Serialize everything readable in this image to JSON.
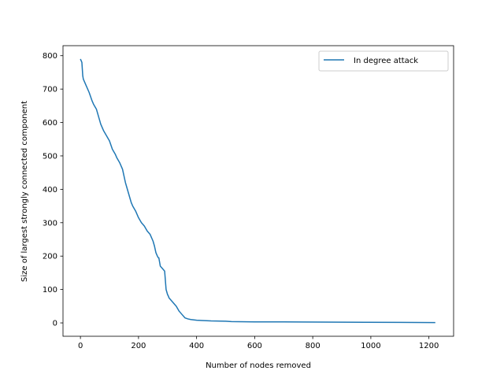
{
  "chart_data": {
    "type": "line",
    "title": "",
    "xlabel": "Number of nodes removed",
    "ylabel": "Size of largest strongly connected component",
    "xlim": [
      -60,
      1285
    ],
    "ylim": [
      -40,
      830
    ],
    "xticks": [
      0,
      200,
      400,
      600,
      800,
      1000,
      1200
    ],
    "yticks": [
      0,
      100,
      200,
      300,
      400,
      500,
      600,
      700,
      800
    ],
    "grid": false,
    "legend_position": "top-right",
    "series": [
      {
        "name": "In degree attack",
        "color": "#1f77b4",
        "x": [
          0,
          5,
          8,
          10,
          20,
          30,
          40,
          45,
          55,
          65,
          70,
          80,
          90,
          100,
          110,
          120,
          125,
          135,
          145,
          150,
          155,
          160,
          165,
          170,
          175,
          180,
          190,
          200,
          210,
          220,
          230,
          240,
          250,
          255,
          260,
          265,
          268,
          270,
          275,
          280,
          285,
          290,
          295,
          300,
          303,
          305,
          310,
          320,
          330,
          340,
          350,
          360,
          370,
          380,
          400,
          450,
          500,
          520,
          600,
          700,
          980,
          1222
        ],
        "y": [
          790,
          780,
          740,
          730,
          710,
          690,
          665,
          655,
          640,
          610,
          595,
          575,
          560,
          545,
          520,
          505,
          495,
          480,
          460,
          440,
          420,
          405,
          390,
          375,
          360,
          350,
          335,
          315,
          300,
          290,
          275,
          265,
          245,
          230,
          210,
          200,
          195,
          195,
          170,
          165,
          160,
          155,
          100,
          85,
          80,
          75,
          70,
          60,
          50,
          35,
          25,
          15,
          12,
          10,
          8,
          6,
          5,
          4,
          3,
          3,
          2,
          1
        ]
      }
    ]
  }
}
